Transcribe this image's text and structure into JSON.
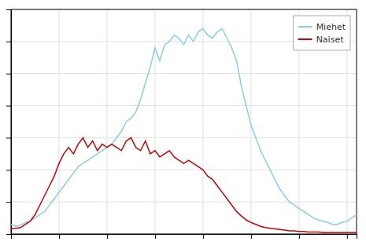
{
  "chart_data": {
    "type": "line",
    "x": [
      18,
      19,
      20,
      21,
      22,
      23,
      24,
      25,
      26,
      27,
      28,
      29,
      30,
      31,
      32,
      33,
      34,
      35,
      36,
      37,
      38,
      39,
      40,
      41,
      42,
      43,
      44,
      45,
      46,
      47,
      48,
      49,
      50,
      51,
      52,
      53,
      54,
      55,
      56,
      57,
      58,
      59,
      60,
      61,
      62,
      63,
      64,
      65,
      66,
      67,
      68,
      69,
      70,
      71,
      72,
      73,
      74,
      75,
      76,
      77,
      78,
      79,
      80,
      81,
      82,
      83,
      84,
      85,
      86,
      87,
      88,
      89,
      90
    ],
    "series": [
      {
        "name": "Miehet",
        "color": "#87CEEB",
        "values": [
          1.5,
          1.2,
          1.4,
          1.8,
          2.0,
          2.5,
          3.0,
          3.5,
          4.5,
          5.5,
          6.5,
          7.5,
          8.5,
          9.5,
          10.5,
          11.0,
          11.5,
          12.0,
          12.5,
          13.0,
          13.5,
          14.0,
          15.0,
          16.0,
          17.5,
          18.0,
          19.0,
          21.0,
          23.5,
          26.0,
          29.0,
          27.0,
          29.5,
          30.0,
          31.0,
          30.5,
          29.5,
          31.0,
          30.0,
          31.5,
          32.0,
          31.0,
          30.5,
          31.5,
          32.0,
          30.5,
          29.0,
          27.0,
          23.0,
          20.0,
          17.0,
          15.0,
          13.0,
          11.5,
          10.0,
          8.5,
          7.0,
          6.0,
          5.0,
          4.5,
          4.0,
          3.5,
          3.0,
          2.5,
          2.2,
          2.0,
          1.8,
          1.5,
          1.5,
          1.8,
          2.0,
          2.5,
          3.0
        ]
      },
      {
        "name": "Naiset",
        "color": "#CC0000",
        "values": [
          0.8,
          0.9,
          1.0,
          1.5,
          2.0,
          3.0,
          4.5,
          6.0,
          7.5,
          9.0,
          11.0,
          12.5,
          13.5,
          12.5,
          14.0,
          15.0,
          13.5,
          14.5,
          13.0,
          14.0,
          13.5,
          14.0,
          13.5,
          13.0,
          14.5,
          15.0,
          13.5,
          13.0,
          14.5,
          12.5,
          13.0,
          12.0,
          12.5,
          13.0,
          12.0,
          11.5,
          11.0,
          11.5,
          11.0,
          10.5,
          10.0,
          9.0,
          8.5,
          7.5,
          6.5,
          5.5,
          4.5,
          3.5,
          2.8,
          2.2,
          1.8,
          1.5,
          1.2,
          1.0,
          0.9,
          0.8,
          0.7,
          0.6,
          0.5,
          0.5,
          0.4,
          0.4,
          0.3,
          0.3,
          0.3,
          0.2,
          0.2,
          0.2,
          0.2,
          0.2,
          0.2,
          0.2,
          0.2
        ]
      }
    ],
    "xlim": [
      18,
      90
    ],
    "xticks": [
      18,
      28,
      38,
      48,
      58,
      68,
      78,
      88
    ],
    "ylim": [
      0,
      35
    ],
    "yticks": [
      0,
      5,
      10,
      15,
      20,
      25,
      30,
      35
    ],
    "grid": true,
    "legend": "top-right",
    "tick_labels": false
  }
}
